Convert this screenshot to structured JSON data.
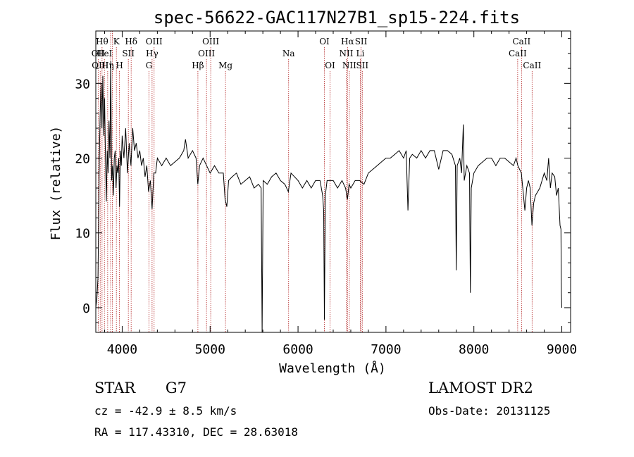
{
  "chart_data": {
    "type": "line",
    "title": "spec-56622-GAC117N27B1_sp15-224.fits",
    "xlabel": "Wavelength (Å)",
    "ylabel": "Flux (relative)",
    "xlim": [
      3700,
      9100
    ],
    "ylim": [
      -3.3,
      37
    ],
    "xticks": [
      4000,
      5000,
      6000,
      7000,
      8000,
      9000
    ],
    "xtick_labels": [
      "4000",
      "5000",
      "6000",
      "7000",
      "8000",
      "9000"
    ],
    "yticks": [
      0,
      10,
      20,
      30
    ],
    "ytick_labels": [
      "0",
      "10",
      "20",
      "30"
    ],
    "grid": false,
    "legend": "none",
    "series": [
      {
        "color": "#000000",
        "points": [
          [
            3700,
            0
          ],
          [
            3712,
            1.2
          ],
          [
            3725,
            4
          ],
          [
            3740,
            20
          ],
          [
            3750,
            26
          ],
          [
            3760,
            30
          ],
          [
            3770,
            24
          ],
          [
            3780,
            31
          ],
          [
            3790,
            23
          ],
          [
            3800,
            28
          ],
          [
            3810,
            20
          ],
          [
            3820,
            14.2
          ],
          [
            3830,
            21
          ],
          [
            3840,
            18
          ],
          [
            3850,
            25
          ],
          [
            3860,
            20
          ],
          [
            3870,
            33
          ],
          [
            3880,
            17
          ],
          [
            3890,
            19
          ],
          [
            3900,
            15
          ],
          [
            3910,
            20
          ],
          [
            3920,
            21
          ],
          [
            3930,
            16
          ],
          [
            3940,
            19
          ],
          [
            3950,
            18
          ],
          [
            3960,
            20
          ],
          [
            3970,
            13.5
          ],
          [
            3980,
            21
          ],
          [
            3990,
            19
          ],
          [
            4000,
            23
          ],
          [
            4020,
            20
          ],
          [
            4040,
            24
          ],
          [
            4060,
            18
          ],
          [
            4080,
            22
          ],
          [
            4100,
            19
          ],
          [
            4120,
            24
          ],
          [
            4140,
            21
          ],
          [
            4160,
            22
          ],
          [
            4180,
            20
          ],
          [
            4200,
            21
          ],
          [
            4220,
            19
          ],
          [
            4240,
            20
          ],
          [
            4260,
            17.5
          ],
          [
            4280,
            19
          ],
          [
            4300,
            15.5
          ],
          [
            4320,
            17
          ],
          [
            4340,
            13.2
          ],
          [
            4360,
            18
          ],
          [
            4380,
            18
          ],
          [
            4400,
            20
          ],
          [
            4450,
            19
          ],
          [
            4500,
            20
          ],
          [
            4550,
            19
          ],
          [
            4600,
            19.5
          ],
          [
            4650,
            20
          ],
          [
            4700,
            21
          ],
          [
            4720,
            22.5
          ],
          [
            4750,
            20
          ],
          [
            4800,
            21
          ],
          [
            4840,
            20
          ],
          [
            4860,
            16.5
          ],
          [
            4880,
            19
          ],
          [
            4920,
            20
          ],
          [
            4960,
            19
          ],
          [
            5000,
            18
          ],
          [
            5050,
            19
          ],
          [
            5100,
            18
          ],
          [
            5150,
            18
          ],
          [
            5170,
            14.5
          ],
          [
            5190,
            13.5
          ],
          [
            5210,
            17
          ],
          [
            5250,
            17.5
          ],
          [
            5300,
            18
          ],
          [
            5350,
            16.5
          ],
          [
            5400,
            17
          ],
          [
            5450,
            17.5
          ],
          [
            5500,
            16
          ],
          [
            5550,
            16.5
          ],
          [
            5580,
            16
          ],
          [
            5592,
            -3.3
          ],
          [
            5604,
            17
          ],
          [
            5650,
            16.5
          ],
          [
            5700,
            17.5
          ],
          [
            5750,
            18
          ],
          [
            5800,
            17
          ],
          [
            5850,
            16.5
          ],
          [
            5890,
            15.5
          ],
          [
            5920,
            18
          ],
          [
            6000,
            17
          ],
          [
            6050,
            16
          ],
          [
            6100,
            17
          ],
          [
            6150,
            16
          ],
          [
            6200,
            17
          ],
          [
            6250,
            17
          ],
          [
            6280,
            15
          ],
          [
            6292,
            13
          ],
          [
            6300,
            -1.6
          ],
          [
            6310,
            15
          ],
          [
            6330,
            17
          ],
          [
            6400,
            17
          ],
          [
            6450,
            16
          ],
          [
            6500,
            17
          ],
          [
            6540,
            16
          ],
          [
            6563,
            14.5
          ],
          [
            6580,
            16.5
          ],
          [
            6600,
            16
          ],
          [
            6650,
            17
          ],
          [
            6700,
            17
          ],
          [
            6750,
            16.5
          ],
          [
            6800,
            18
          ],
          [
            6850,
            18.5
          ],
          [
            6900,
            19
          ],
          [
            6950,
            19.5
          ],
          [
            7000,
            20
          ],
          [
            7050,
            20
          ],
          [
            7100,
            20.5
          ],
          [
            7150,
            21
          ],
          [
            7200,
            20
          ],
          [
            7230,
            21
          ],
          [
            7250,
            13
          ],
          [
            7270,
            20
          ],
          [
            7300,
            20.5
          ],
          [
            7350,
            20
          ],
          [
            7400,
            21
          ],
          [
            7450,
            20
          ],
          [
            7500,
            21
          ],
          [
            7550,
            21
          ],
          [
            7600,
            18.5
          ],
          [
            7650,
            21
          ],
          [
            7700,
            21
          ],
          [
            7750,
            20.5
          ],
          [
            7790,
            19
          ],
          [
            7800,
            5
          ],
          [
            7810,
            19
          ],
          [
            7840,
            20
          ],
          [
            7860,
            18
          ],
          [
            7880,
            24.5
          ],
          [
            7890,
            17
          ],
          [
            7920,
            19
          ],
          [
            7950,
            18
          ],
          [
            7960,
            2
          ],
          [
            7970,
            16
          ],
          [
            8000,
            18
          ],
          [
            8050,
            19
          ],
          [
            8100,
            19.5
          ],
          [
            8150,
            20
          ],
          [
            8200,
            20
          ],
          [
            8250,
            19
          ],
          [
            8300,
            20
          ],
          [
            8350,
            20
          ],
          [
            8400,
            19.5
          ],
          [
            8450,
            19
          ],
          [
            8480,
            20
          ],
          [
            8500,
            19
          ],
          [
            8540,
            18
          ],
          [
            8580,
            13
          ],
          [
            8600,
            16
          ],
          [
            8620,
            17
          ],
          [
            8640,
            16
          ],
          [
            8660,
            11
          ],
          [
            8680,
            14
          ],
          [
            8700,
            15
          ],
          [
            8750,
            16
          ],
          [
            8800,
            18
          ],
          [
            8830,
            17
          ],
          [
            8850,
            20
          ],
          [
            8870,
            16
          ],
          [
            8890,
            18
          ],
          [
            8920,
            17.5
          ],
          [
            8940,
            15
          ],
          [
            8960,
            16
          ],
          [
            8980,
            11
          ],
          [
            8990,
            10.5
          ],
          [
            8995,
            2
          ],
          [
            9000,
            0
          ]
        ]
      }
    ],
    "line_markers": [
      {
        "wl": 3727,
        "label": "OII",
        "row": 1
      },
      {
        "wl": 3750,
        "label": "OIII",
        "row": 2
      },
      {
        "wl": 3771,
        "label": "Hθ",
        "row": 0
      },
      {
        "wl": 3798,
        "label": "HeI",
        "row": 1
      },
      {
        "wl": 3835,
        "label": "Hη",
        "row": 2
      },
      {
        "wl": 3869,
        "label": "",
        "row": -1
      },
      {
        "wl": 3889,
        "label": "",
        "row": -1
      },
      {
        "wl": 3934,
        "label": "K",
        "row": 0
      },
      {
        "wl": 3969,
        "label": "H",
        "row": 2
      },
      {
        "wl": 4070,
        "label": "SII",
        "row": 1
      },
      {
        "wl": 4102,
        "label": "Hδ",
        "row": 0
      },
      {
        "wl": 4305,
        "label": "G",
        "row": 2
      },
      {
        "wl": 4340,
        "label": "Hγ",
        "row": 1
      },
      {
        "wl": 4363,
        "label": "OIII",
        "row": 0
      },
      {
        "wl": 4861,
        "label": "Hβ",
        "row": 2
      },
      {
        "wl": 4959,
        "label": "OIII",
        "row": 1
      },
      {
        "wl": 5007,
        "label": "OIII",
        "row": 0
      },
      {
        "wl": 5175,
        "label": "Mg",
        "row": 2
      },
      {
        "wl": 5893,
        "label": "Na",
        "row": 1
      },
      {
        "wl": 6300,
        "label": "OI",
        "row": 0
      },
      {
        "wl": 6364,
        "label": "OI",
        "row": 2
      },
      {
        "wl": 6548,
        "label": "NII",
        "row": 1
      },
      {
        "wl": 6563,
        "label": "Hα",
        "row": 0
      },
      {
        "wl": 6583,
        "label": "NII",
        "row": 2
      },
      {
        "wl": 6708,
        "label": "Li",
        "row": 1
      },
      {
        "wl": 6717,
        "label": "SII",
        "row": 0
      },
      {
        "wl": 6731,
        "label": "SII",
        "row": 2
      },
      {
        "wl": 8498,
        "label": "CaII",
        "row": 1
      },
      {
        "wl": 8542,
        "label": "CaII",
        "row": 0
      },
      {
        "wl": 8662,
        "label": "CaII",
        "row": 2
      }
    ]
  },
  "info": {
    "object_type": "STAR",
    "subclass": "G7",
    "survey": "LAMOST DR2",
    "cz": "cz = -42.9 ± 8.5 km/s",
    "obs_date": "Obs-Date: 20131125",
    "coords": "RA = 117.43310, DEC =  28.63018"
  }
}
